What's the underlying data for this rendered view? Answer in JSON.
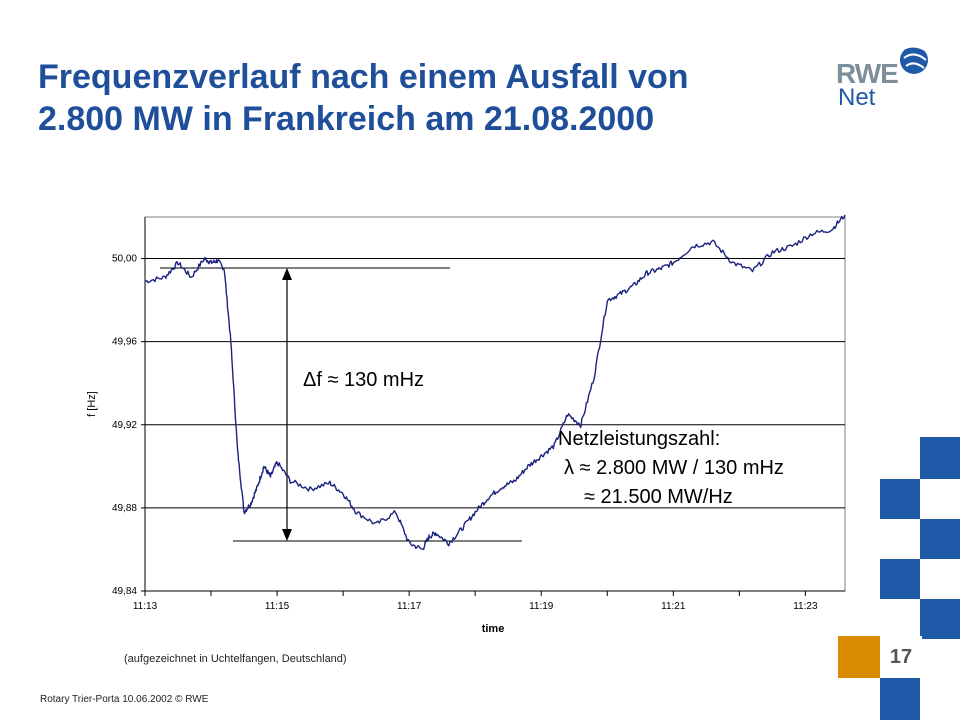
{
  "slide": {
    "title_line1": "Frequenzverlauf nach einem Ausfall von",
    "title_line2": "2.800 MW in Frankreich am 21.08.2000",
    "logo": {
      "brand": "RWE",
      "sub": "Net",
      "icon": "hand-wave-icon"
    },
    "source_note": "(aufgezeichnet in Uchtelfangen, Deutschland)",
    "footer": "Rotary Trier-Porta 10.06.2002 © RWE",
    "page_number": "17",
    "colors": {
      "title": "#1f4e9a",
      "line": "#1a237e",
      "accent_blue": "#1f5aa8",
      "accent_orange": "#d98a00"
    }
  },
  "annotations": {
    "delta_f": "Δf ≈ 130 mHz",
    "netz_title": "Netzleistungszahl:",
    "netz_line1": "λ ≈ 2.800 MW / 130 mHz",
    "netz_line2": "≈ 21.500 MW/Hz"
  },
  "chart_data": {
    "type": "line",
    "title": "",
    "xlabel": "time",
    "ylabel": "f [Hz]",
    "ylim": [
      49.84,
      50.02
    ],
    "xlim": [
      0,
      10.6
    ],
    "x_unit": "minutes after 11:13",
    "yticks": [
      "49,84",
      "49,88",
      "49,92",
      "49,96",
      "50,00"
    ],
    "ytick_values": [
      49.84,
      49.88,
      49.92,
      49.96,
      50.0
    ],
    "xticks": [
      "11:13",
      "11:15",
      "11:17",
      "11:19",
      "11:21",
      "11:23"
    ],
    "grid": "horizontal",
    "series": [
      {
        "name": "",
        "x": [
          0,
          0.3,
          0.5,
          0.7,
          0.9,
          1.0,
          1.1,
          1.2,
          1.3,
          1.4,
          1.5,
          1.6,
          1.7,
          1.8,
          1.9,
          2.0,
          2.2,
          2.5,
          2.8,
          3.0,
          3.2,
          3.5,
          3.8,
          4.0,
          4.2,
          4.3,
          4.4,
          4.6,
          4.8,
          5.0,
          5.2,
          5.4,
          5.6,
          5.8,
          6.0,
          6.2,
          6.4,
          6.6,
          6.8,
          7.0,
          7.2,
          7.4,
          7.6,
          7.8,
          8.0,
          8.3,
          8.6,
          8.9,
          9.2,
          9.5,
          9.8,
          10.1,
          10.4,
          10.6
        ],
        "y": [
          49.989,
          49.991,
          49.998,
          49.991,
          50.0,
          49.998,
          49.999,
          49.995,
          49.96,
          49.908,
          49.878,
          49.882,
          49.89,
          49.9,
          49.895,
          49.902,
          49.893,
          49.889,
          49.892,
          49.887,
          49.878,
          49.872,
          49.878,
          49.863,
          49.86,
          49.866,
          49.868,
          49.863,
          49.87,
          49.878,
          49.885,
          49.89,
          49.893,
          49.9,
          49.905,
          49.91,
          49.925,
          49.92,
          49.943,
          49.98,
          49.983,
          49.987,
          49.993,
          49.995,
          49.998,
          50.006,
          50.008,
          49.998,
          49.994,
          50.003,
          50.006,
          50.012,
          50.014,
          50.021
        ]
      }
    ]
  }
}
